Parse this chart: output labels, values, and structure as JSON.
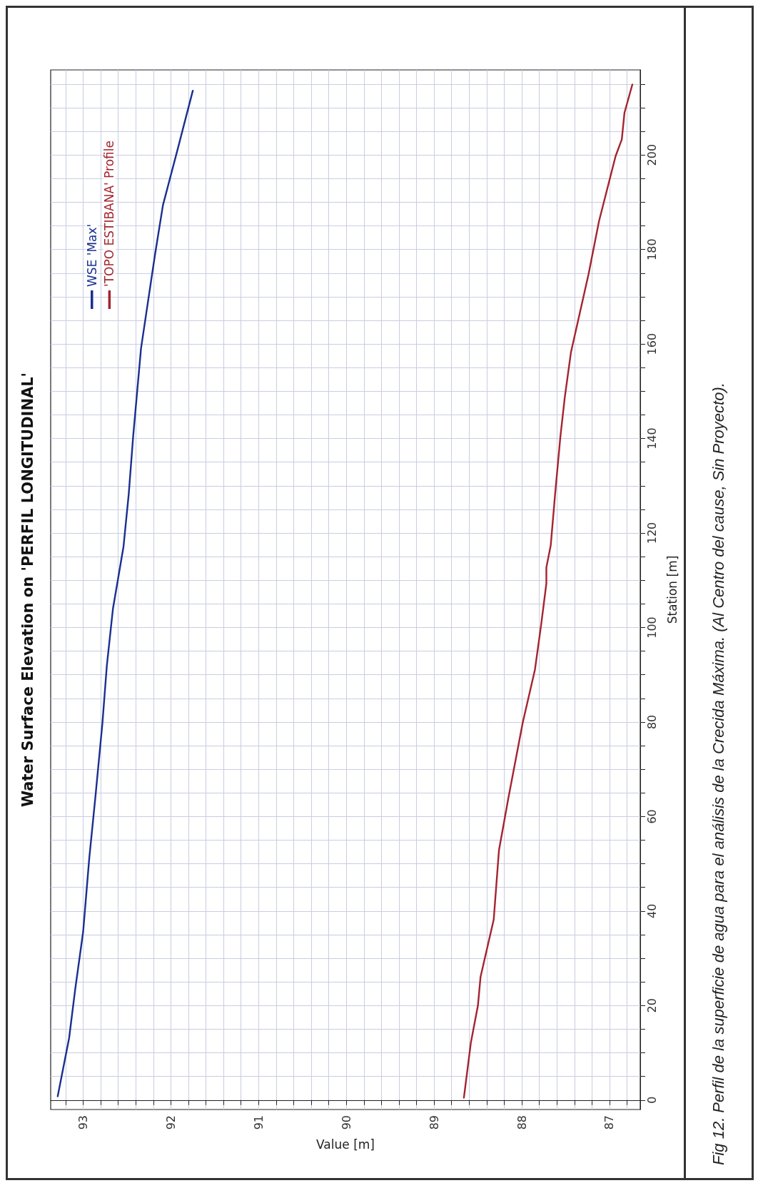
{
  "chart_data": {
    "type": "line",
    "title": "Water Surface Elevation on 'PERFIL LONGITUDINAL'",
    "xlabel": "Value [m]",
    "ylabel": "Station [m]",
    "xlim": [
      93.37,
      86.65
    ],
    "xticks": [
      93,
      92,
      91,
      90,
      89,
      88,
      87
    ],
    "ylim": [
      -2,
      218
    ],
    "yticks": [
      0,
      20,
      40,
      60,
      80,
      100,
      120,
      140,
      160,
      180,
      200
    ],
    "grid": true,
    "legend": "top left",
    "line_style": "solid",
    "marker": "none",
    "series": [
      {
        "name": "WSE 'Max'",
        "color": "#1a2f8f",
        "x": [
          93.29,
          93.16,
          93.09,
          93.0,
          92.93,
          92.86,
          92.78,
          92.73,
          92.66,
          92.54,
          92.48,
          92.43,
          92.34,
          92.25,
          92.18,
          92.09,
          91.93,
          91.75
        ],
        "values": [
          0.8,
          13.1,
          23.5,
          35.6,
          51.2,
          64.2,
          79.8,
          91.9,
          104,
          117.1,
          128.3,
          140.4,
          159.1,
          170.3,
          179,
          189.4,
          200.7,
          213.6
        ]
      },
      {
        "name": "'TOPO ESTIBANA' Profile",
        "color": "#a3242f",
        "x": [
          88.66,
          88.58,
          88.5,
          88.47,
          88.32,
          88.26,
          88.15,
          87.99,
          87.85,
          87.78,
          87.72,
          87.72,
          87.67,
          87.62,
          87.56,
          87.51,
          87.44,
          87.24,
          87.12,
          86.93,
          86.86,
          86.83,
          86.74
        ],
        "values": [
          0.5,
          12.2,
          20,
          26.1,
          38.2,
          52.9,
          64.2,
          79.8,
          91.1,
          100.5,
          109.3,
          112.7,
          117.4,
          128.3,
          140.4,
          148.7,
          158.2,
          174.7,
          186,
          199.8,
          203.3,
          208.9,
          214.9
        ]
      }
    ],
    "annotations": [
      "Fig 12. Perfil de la superficie de agua para el análisis de la Crecida Máxima. (Al Centro del cause, Sin Proyecto)."
    ]
  }
}
